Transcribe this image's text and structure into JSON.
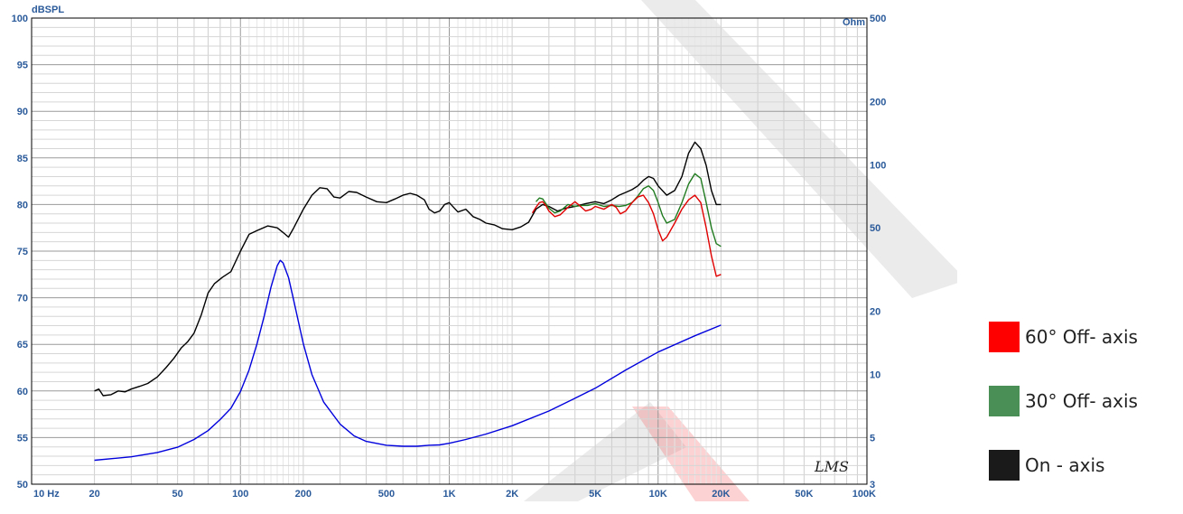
{
  "chart_data": {
    "type": "line",
    "x_scale": "log",
    "xlim": [
      10,
      100000
    ],
    "ylim": [
      50,
      100
    ],
    "y2lim": [
      3,
      500
    ],
    "y2_scale": "log",
    "ylabel": "dBSPL",
    "y2label": "Ohm",
    "x_ticks": [
      {
        "value": 10,
        "label": "10  Hz"
      },
      {
        "value": 20,
        "label": "20"
      },
      {
        "value": 50,
        "label": "50"
      },
      {
        "value": 100,
        "label": "100"
      },
      {
        "value": 200,
        "label": "200"
      },
      {
        "value": 500,
        "label": "500"
      },
      {
        "value": 1000,
        "label": "1K"
      },
      {
        "value": 2000,
        "label": "2K"
      },
      {
        "value": 5000,
        "label": "5K"
      },
      {
        "value": 10000,
        "label": "10K"
      },
      {
        "value": 20000,
        "label": "20K"
      },
      {
        "value": 50000,
        "label": "50K"
      },
      {
        "value": 100000,
        "label": "100K"
      }
    ],
    "y_ticks": [
      {
        "value": 100,
        "label": "100"
      },
      {
        "value": 95,
        "label": "95"
      },
      {
        "value": 90,
        "label": "90"
      },
      {
        "value": 85,
        "label": "85"
      },
      {
        "value": 80,
        "label": "80"
      },
      {
        "value": 75,
        "label": "75"
      },
      {
        "value": 70,
        "label": "70"
      },
      {
        "value": 65,
        "label": "65"
      },
      {
        "value": 60,
        "label": "60"
      },
      {
        "value": 55,
        "label": "55"
      },
      {
        "value": 50,
        "label": "50"
      }
    ],
    "y2_ticks": [
      {
        "value": 500,
        "label": "500"
      },
      {
        "value": 200,
        "label": "200"
      },
      {
        "value": 100,
        "label": "100"
      },
      {
        "value": 50,
        "label": "50"
      },
      {
        "value": 20,
        "label": "20"
      },
      {
        "value": 10,
        "label": "10"
      },
      {
        "value": 5,
        "label": "5"
      },
      {
        "value": 3,
        "label": "3"
      }
    ],
    "watermark_text": "LMS",
    "series": [
      {
        "name": "On - axis",
        "color": "#000000",
        "axis": "left",
        "points": [
          [
            20,
            60
          ],
          [
            21,
            60.2
          ],
          [
            22,
            59.5
          ],
          [
            24,
            59.6
          ],
          [
            26,
            60
          ],
          [
            28,
            59.9
          ],
          [
            30,
            60.2
          ],
          [
            33,
            60.5
          ],
          [
            36,
            60.8
          ],
          [
            40,
            61.5
          ],
          [
            44,
            62.5
          ],
          [
            48,
            63.5
          ],
          [
            52,
            64.6
          ],
          [
            56,
            65.3
          ],
          [
            60,
            66.2
          ],
          [
            65,
            68.2
          ],
          [
            70,
            70.5
          ],
          [
            75,
            71.5
          ],
          [
            82,
            72.2
          ],
          [
            90,
            72.8
          ],
          [
            100,
            75
          ],
          [
            110,
            76.8
          ],
          [
            120,
            77.2
          ],
          [
            135,
            77.7
          ],
          [
            150,
            77.5
          ],
          [
            160,
            77
          ],
          [
            170,
            76.5
          ],
          [
            180,
            77.5
          ],
          [
            200,
            79.5
          ],
          [
            220,
            81
          ],
          [
            240,
            81.8
          ],
          [
            260,
            81.7
          ],
          [
            280,
            80.8
          ],
          [
            300,
            80.7
          ],
          [
            330,
            81.4
          ],
          [
            360,
            81.3
          ],
          [
            400,
            80.8
          ],
          [
            450,
            80.3
          ],
          [
            500,
            80.2
          ],
          [
            550,
            80.6
          ],
          [
            600,
            81
          ],
          [
            650,
            81.2
          ],
          [
            700,
            81
          ],
          [
            760,
            80.5
          ],
          [
            800,
            79.5
          ],
          [
            850,
            79.1
          ],
          [
            900,
            79.3
          ],
          [
            950,
            80
          ],
          [
            1000,
            80.2
          ],
          [
            1100,
            79.2
          ],
          [
            1200,
            79.5
          ],
          [
            1300,
            78.7
          ],
          [
            1400,
            78.4
          ],
          [
            1500,
            78
          ],
          [
            1650,
            77.8
          ],
          [
            1800,
            77.4
          ],
          [
            2000,
            77.3
          ],
          [
            2200,
            77.6
          ],
          [
            2400,
            78.1
          ],
          [
            2600,
            79.5
          ],
          [
            2800,
            80
          ],
          [
            3000,
            79.8
          ],
          [
            3300,
            79.3
          ],
          [
            3600,
            79.6
          ],
          [
            4000,
            79.8
          ],
          [
            4500,
            80.1
          ],
          [
            5000,
            80.3
          ],
          [
            5500,
            80.1
          ],
          [
            6000,
            80.5
          ],
          [
            6500,
            81
          ],
          [
            7000,
            81.3
          ],
          [
            7500,
            81.6
          ],
          [
            8000,
            82
          ],
          [
            8500,
            82.6
          ],
          [
            9000,
            83
          ],
          [
            9500,
            82.8
          ],
          [
            10000,
            82
          ],
          [
            11000,
            81
          ],
          [
            12000,
            81.5
          ],
          [
            13000,
            83
          ],
          [
            14000,
            85.5
          ],
          [
            15000,
            86.7
          ],
          [
            16000,
            86
          ],
          [
            17000,
            84.2
          ],
          [
            18000,
            81.5
          ],
          [
            19000,
            80
          ],
          [
            20000,
            80
          ]
        ]
      },
      {
        "name": "30° Off- axis",
        "color": "#1f7a1f",
        "axis": "left",
        "points": [
          [
            2600,
            80.3
          ],
          [
            2700,
            80.7
          ],
          [
            2800,
            80.6
          ],
          [
            2900,
            80.1
          ],
          [
            3000,
            79.6
          ],
          [
            3200,
            79.1
          ],
          [
            3400,
            79.3
          ],
          [
            3700,
            80
          ],
          [
            4000,
            79.8
          ],
          [
            4300,
            79.9
          ],
          [
            4600,
            79.9
          ],
          [
            5000,
            80.1
          ],
          [
            5500,
            79.8
          ],
          [
            6000,
            79.9
          ],
          [
            6500,
            79.8
          ],
          [
            7000,
            79.9
          ],
          [
            7500,
            80.2
          ],
          [
            8000,
            80.9
          ],
          [
            8500,
            81.7
          ],
          [
            9000,
            82
          ],
          [
            9500,
            81.5
          ],
          [
            10000,
            80.2
          ],
          [
            10500,
            78.8
          ],
          [
            11000,
            78
          ],
          [
            12000,
            78.4
          ],
          [
            13000,
            80.2
          ],
          [
            14000,
            82.2
          ],
          [
            15000,
            83.3
          ],
          [
            16000,
            82.8
          ],
          [
            17000,
            80.2
          ],
          [
            18000,
            77.5
          ],
          [
            19000,
            75.8
          ],
          [
            20000,
            75.5
          ]
        ]
      },
      {
        "name": "60° Off- axis",
        "color": "#e00000",
        "axis": "left",
        "points": [
          [
            2500,
            79.1
          ],
          [
            2600,
            79.7
          ],
          [
            2700,
            80.2
          ],
          [
            2800,
            80.3
          ],
          [
            2900,
            79.9
          ],
          [
            3000,
            79.3
          ],
          [
            3200,
            78.7
          ],
          [
            3400,
            78.9
          ],
          [
            3700,
            79.7
          ],
          [
            4000,
            80.3
          ],
          [
            4200,
            79.9
          ],
          [
            4500,
            79.3
          ],
          [
            4800,
            79.5
          ],
          [
            5000,
            79.8
          ],
          [
            5500,
            79.5
          ],
          [
            6000,
            80
          ],
          [
            6300,
            79.7
          ],
          [
            6600,
            79
          ],
          [
            7000,
            79.3
          ],
          [
            7500,
            80.2
          ],
          [
            8000,
            80.8
          ],
          [
            8500,
            81
          ],
          [
            9000,
            80.2
          ],
          [
            9500,
            79
          ],
          [
            10000,
            77.3
          ],
          [
            10500,
            76.1
          ],
          [
            11000,
            76.5
          ],
          [
            12000,
            78
          ],
          [
            13000,
            79.5
          ],
          [
            14000,
            80.5
          ],
          [
            15000,
            81
          ],
          [
            16000,
            80.2
          ],
          [
            17000,
            77.5
          ],
          [
            18000,
            74.5
          ],
          [
            19000,
            72.3
          ],
          [
            20000,
            72.5
          ]
        ]
      },
      {
        "name": "",
        "color": "#0000dd",
        "axis": "right",
        "points": [
          [
            20,
            3.9
          ],
          [
            30,
            4.05
          ],
          [
            40,
            4.25
          ],
          [
            50,
            4.5
          ],
          [
            60,
            4.9
          ],
          [
            70,
            5.4
          ],
          [
            80,
            6.1
          ],
          [
            90,
            6.9
          ],
          [
            100,
            8.3
          ],
          [
            110,
            10.5
          ],
          [
            120,
            14
          ],
          [
            130,
            19
          ],
          [
            140,
            26
          ],
          [
            150,
            33
          ],
          [
            155,
            35
          ],
          [
            160,
            34
          ],
          [
            170,
            29
          ],
          [
            180,
            22.5
          ],
          [
            200,
            14
          ],
          [
            220,
            10
          ],
          [
            250,
            7.4
          ],
          [
            300,
            5.8
          ],
          [
            350,
            5.1
          ],
          [
            400,
            4.8
          ],
          [
            500,
            4.6
          ],
          [
            600,
            4.55
          ],
          [
            700,
            4.55
          ],
          [
            800,
            4.6
          ],
          [
            900,
            4.62
          ],
          [
            1000,
            4.7
          ],
          [
            1200,
            4.9
          ],
          [
            1500,
            5.2
          ],
          [
            2000,
            5.7
          ],
          [
            3000,
            6.7
          ],
          [
            4000,
            7.7
          ],
          [
            5000,
            8.6
          ],
          [
            7000,
            10.5
          ],
          [
            10000,
            12.8
          ],
          [
            15000,
            15.3
          ],
          [
            20000,
            17.2
          ]
        ]
      }
    ],
    "legend": {
      "placement": "right",
      "items": [
        {
          "label": "60° Off- axis",
          "color": "#ff0000"
        },
        {
          "label": "30° Off- axis",
          "color": "#4a8f55"
        },
        {
          "label": "On - axis",
          "color": "#1a1a1a"
        }
      ]
    }
  }
}
